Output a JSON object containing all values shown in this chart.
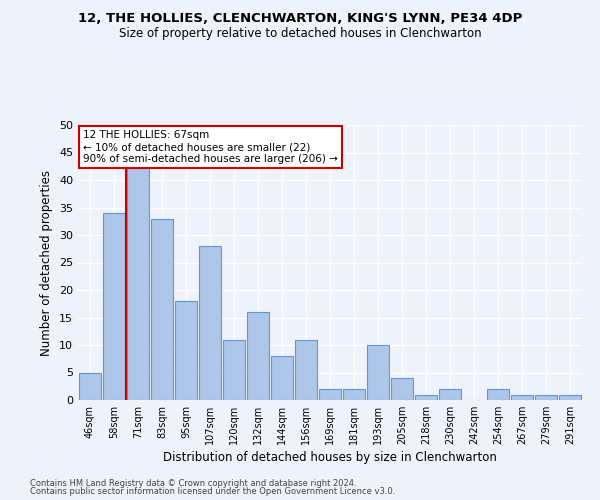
{
  "title1": "12, THE HOLLIES, CLENCHWARTON, KING'S LYNN, PE34 4DP",
  "title2": "Size of property relative to detached houses in Clenchwarton",
  "xlabel": "Distribution of detached houses by size in Clenchwarton",
  "ylabel": "Number of detached properties",
  "categories": [
    "46sqm",
    "58sqm",
    "71sqm",
    "83sqm",
    "95sqm",
    "107sqm",
    "120sqm",
    "132sqm",
    "144sqm",
    "156sqm",
    "169sqm",
    "181sqm",
    "193sqm",
    "205sqm",
    "218sqm",
    "230sqm",
    "242sqm",
    "254sqm",
    "267sqm",
    "279sqm",
    "291sqm"
  ],
  "values": [
    5,
    34,
    43,
    33,
    18,
    28,
    11,
    16,
    8,
    11,
    2,
    2,
    10,
    4,
    1,
    2,
    0,
    2,
    1,
    1,
    1
  ],
  "bar_color": "#aec6e8",
  "bar_edge_color": "#5b9bd5",
  "vline_x_index": 1.5,
  "vline_color": "#cc0000",
  "annotation_text": "12 THE HOLLIES: 67sqm\n← 10% of detached houses are smaller (22)\n90% of semi-detached houses are larger (206) →",
  "annotation_box_color": "#ffffff",
  "annotation_box_edge": "#cc0000",
  "ylim": [
    0,
    50
  ],
  "yticks": [
    0,
    5,
    10,
    15,
    20,
    25,
    30,
    35,
    40,
    45,
    50
  ],
  "background_color": "#eef2fb",
  "grid_color": "#ffffff",
  "footer1": "Contains HM Land Registry data © Crown copyright and database right 2024.",
  "footer2": "Contains public sector information licensed under the Open Government Licence v3.0."
}
